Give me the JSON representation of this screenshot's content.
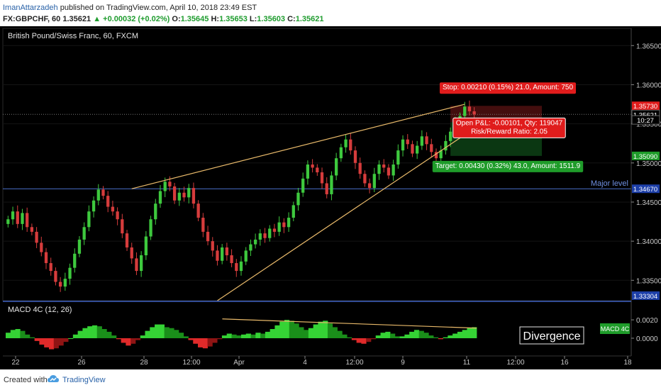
{
  "header": {
    "author": "ImanAttarzadeh",
    "published_text": "published on TradingView.com, April 10, 2018 23:49 EST",
    "symbol": "FX:GBPCHF, 60",
    "last": "1.35621",
    "change": "+0.00032 (+0.02%)",
    "open_label": "O:",
    "open": "1.35645",
    "high_label": "H:",
    "high": "1.35653",
    "low_label": "L:",
    "low": "1.35603",
    "close_label": "C:",
    "close": "1.35621"
  },
  "colors": {
    "background": "#000000",
    "up": "#3ec93e",
    "down": "#d63c3c",
    "trendline": "#e8b96a",
    "major_level": "#4a6fc9",
    "stop": "#e01c1c",
    "target": "#1f9c2a",
    "axis_text": "#c8c8c8"
  },
  "chart_data": [
    {
      "type": "line",
      "title": "British Pound/Swiss Franc, 60, FXCM",
      "y_ticks": [
        "1.36500",
        "1.36000",
        "1.35500",
        "1.35000",
        "1.34500",
        "1.34000",
        "1.33500"
      ],
      "ylim": [
        1.3324,
        1.3672
      ],
      "price_tags": [
        {
          "label": "1.35730",
          "value": 1.3573,
          "color": "#e01c1c"
        },
        {
          "label": "1.35621",
          "value": 1.35621,
          "color": "#000000"
        },
        {
          "label": "10:27",
          "value": 1.3555,
          "color": "#000000"
        },
        {
          "label": "1.35090",
          "value": 1.3509,
          "color": "#1f9c2a"
        },
        {
          "label": "1.34670",
          "value": 1.3467,
          "color": "#1d3fa8"
        },
        {
          "label": "1.33304",
          "value": 1.33304,
          "color": "#1d3fa8"
        }
      ],
      "x_ticks": [
        "22",
        "26",
        "28",
        "12:00",
        "Apr",
        "4",
        "12:00",
        "9",
        "11",
        "12:00",
        "16",
        "18"
      ],
      "series": [
        {
          "values": [
            1.3428,
            1.3438,
            1.3422,
            1.3436,
            1.3418,
            1.3412,
            1.3398,
            1.3386,
            1.3372,
            1.3362,
            1.3348,
            1.3342,
            1.3352,
            1.3366,
            1.3384,
            1.3402,
            1.3418,
            1.3438,
            1.3452,
            1.3466,
            1.3458,
            1.3444,
            1.3438,
            1.3428,
            1.341,
            1.3392,
            1.3378,
            1.3362,
            1.3382,
            1.3406,
            1.3428,
            1.3448,
            1.3464,
            1.3476,
            1.347,
            1.3452,
            1.3462,
            1.3456,
            1.3468,
            1.3448,
            1.343,
            1.3412,
            1.34,
            1.3388,
            1.3375,
            1.3392,
            1.3382,
            1.3372,
            1.3362,
            1.3374,
            1.3388,
            1.3396,
            1.3402,
            1.341,
            1.3404,
            1.3416,
            1.3412,
            1.3424,
            1.3418,
            1.343,
            1.3446,
            1.3462,
            1.348,
            1.3498,
            1.3494,
            1.3488,
            1.3474,
            1.346,
            1.3484,
            1.3506,
            1.352,
            1.353,
            1.3516,
            1.35,
            1.3486,
            1.3474,
            1.3468,
            1.3486,
            1.3498,
            1.3494,
            1.3484,
            1.3498,
            1.3516,
            1.353,
            1.3524,
            1.3512,
            1.3522,
            1.3534,
            1.3524,
            1.3514,
            1.3506,
            1.3516,
            1.3528,
            1.354,
            1.3552,
            1.356,
            1.3572,
            1.3566,
            1.3562
          ]
        }
      ],
      "trendlines": [
        {
          "name": "upper-wedge",
          "from": [
            26,
            1.3467
          ],
          "to": [
            96,
            1.3575
          ]
        },
        {
          "name": "lower-wedge",
          "from": [
            44,
            1.3324
          ],
          "to": [
            96,
            1.3536
          ]
        }
      ],
      "horizontal_level": {
        "label": "Major level",
        "value": 1.3467
      },
      "position": {
        "stop_label": "Stop: 0.00210 (0.15%) 21.0, Amount: 750",
        "pnl_label": "Open P&L: -0.00101, Qty: 119047",
        "rr_label": "Risk/Reward Ratio: 2.05",
        "target_label": "Target: 0.00430 (0.32%) 43.0, Amount: 1511.9",
        "stop": 1.3573,
        "entry": 1.3552,
        "target": 1.3509
      }
    },
    {
      "type": "bar",
      "title": "MACD 4C (12, 26)",
      "legend_tag": "MACD 4C",
      "y_ticks": [
        "0.0020",
        "0.0000"
      ],
      "ylim": [
        -0.0017,
        0.0027
      ],
      "annotation": "Divergence",
      "divergence_line": {
        "from": [
          0.46,
          0.0021
        ],
        "to": [
          0.97,
          0.0011
        ]
      },
      "values": [
        0.0006,
        0.0009,
        0.001,
        0.0008,
        0.0004,
        0.0001,
        -0.0003,
        -0.0007,
        -0.001,
        -0.0012,
        -0.0011,
        -0.0008,
        -0.0004,
        0.0,
        0.0004,
        0.0008,
        0.0011,
        0.0013,
        0.0014,
        0.0013,
        0.001,
        0.0007,
        0.0003,
        -0.0001,
        -0.0005,
        -0.0008,
        -0.0006,
        -0.0002,
        0.0003,
        0.0008,
        0.0012,
        0.0015,
        0.0015,
        0.0012,
        0.0011,
        0.0009,
        0.0006,
        0.0002,
        -0.0002,
        -0.0006,
        -0.001,
        -0.0011,
        -0.0009,
        -0.0005,
        -0.0001,
        0.0003,
        0.0005,
        0.0004,
        0.0003,
        0.0004,
        0.0005,
        0.0004,
        0.0006,
        0.0005,
        0.0007,
        0.001,
        0.0014,
        0.0018,
        0.002,
        0.0019,
        0.0016,
        0.0012,
        0.0009,
        0.0011,
        0.0015,
        0.0018,
        0.0019,
        0.0016,
        0.0012,
        0.0008,
        0.0004,
        0.0001,
        -0.0002,
        -0.0005,
        -0.0006,
        -0.0004,
        -0.0001,
        0.0003,
        0.0006,
        0.0007,
        0.0005,
        0.0002,
        0.0002,
        0.0004,
        0.0007,
        0.0009,
        0.0008,
        0.0006,
        0.0003,
        0.0001,
        -0.0001,
        0.0001,
        0.0003,
        0.0005,
        0.0007,
        0.0009,
        0.0011,
        0.0012
      ]
    }
  ],
  "footer": {
    "created_with": "Created with",
    "brand": "TradingView"
  }
}
